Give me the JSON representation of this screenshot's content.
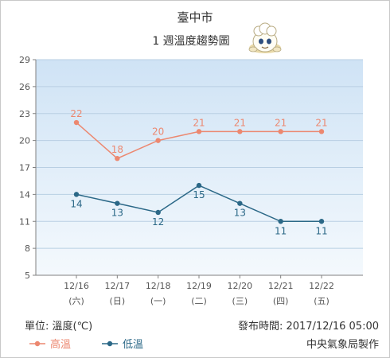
{
  "chart_data": {
    "type": "line",
    "title": "臺中市",
    "subtitle": "1 週溫度趨勢圖",
    "categories": [
      "12/16",
      "12/17",
      "12/18",
      "12/19",
      "12/20",
      "12/21",
      "12/22"
    ],
    "weekdays": [
      "(六)",
      "(日)",
      "(一)",
      "(二)",
      "(三)",
      "(四)",
      "(五)"
    ],
    "series": [
      {
        "name": "高溫",
        "values": [
          22,
          18,
          20,
          21,
          21,
          21,
          21
        ],
        "color": "#ec8870"
      },
      {
        "name": "低溫",
        "values": [
          14,
          13,
          12,
          15,
          13,
          11,
          11
        ],
        "color": "#2b6887"
      }
    ],
    "yticks": [
      5,
      8,
      11,
      14,
      17,
      20,
      23,
      26,
      29
    ],
    "ylim": [
      5,
      29
    ],
    "grid": true,
    "legend_position": "bottom-left",
    "unit_label": "單位: 溫度(℃)",
    "publish_label": "發布時間: 2017/12/16 05:00",
    "source_label": "中央氣象局製作"
  },
  "colors": {
    "plot_bg_top": "#cfe3f5",
    "plot_bg_bottom": "#f4f9fd",
    "grid": "#b9cfe3",
    "axis": "#808080"
  },
  "icons": {
    "mascot": "chef-mascot-icon"
  }
}
